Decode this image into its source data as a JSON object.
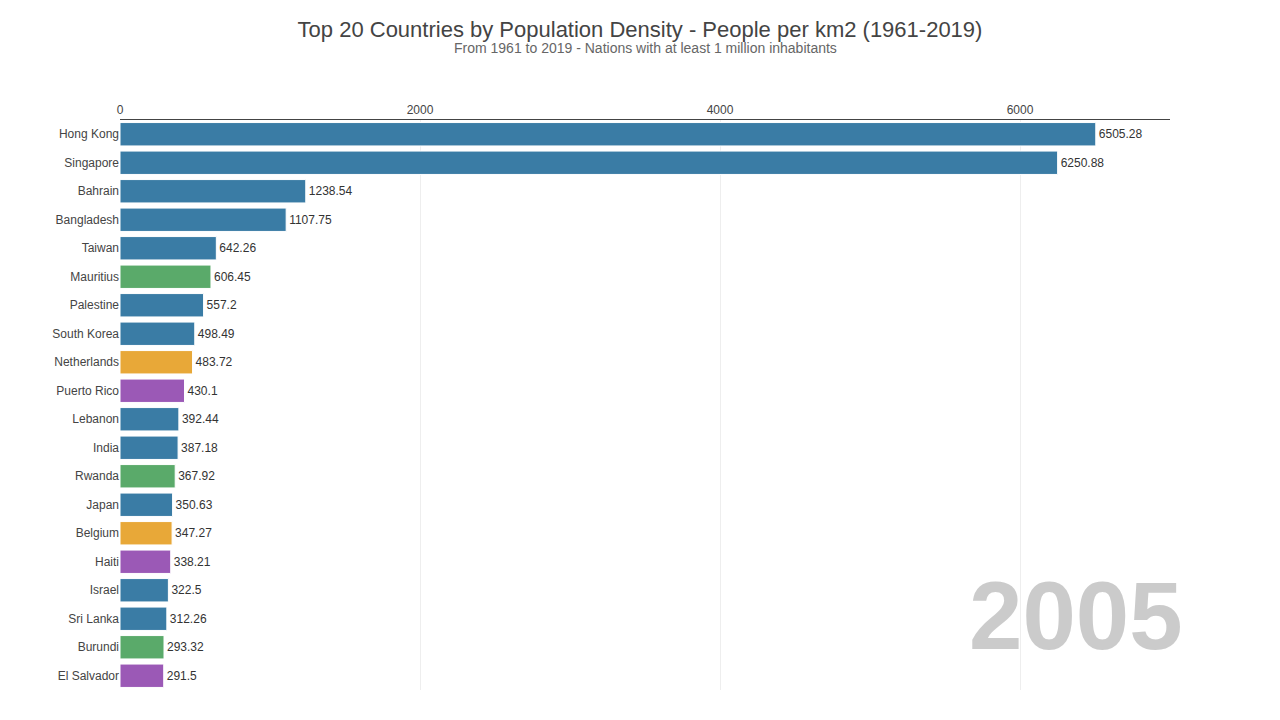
{
  "chart_data": {
    "type": "bar",
    "orientation": "horizontal",
    "title": "Top 20 Countries by Population Density - People per km2 (1961-2019)",
    "subtitle": "From 1961 to 2019 - Nations with at least 1 million inhabitants",
    "annotation": "2005",
    "categories": [
      "Hong Kong",
      "Singapore",
      "Bahrain",
      "Bangladesh",
      "Taiwan",
      "Mauritius",
      "Palestine",
      "South Korea",
      "Netherlands",
      "Puerto Rico",
      "Lebanon",
      "India",
      "Rwanda",
      "Japan",
      "Belgium",
      "Haiti",
      "Israel",
      "Sri Lanka",
      "Burundi",
      "El Salvador"
    ],
    "values": [
      6505.28,
      6250.88,
      1238.54,
      1107.75,
      642.26,
      606.45,
      557.2,
      498.49,
      483.72,
      430.1,
      392.44,
      387.18,
      367.92,
      350.63,
      347.27,
      338.21,
      322.5,
      312.26,
      293.32,
      291.5
    ],
    "colors": [
      "#3a7ca5",
      "#3a7ca5",
      "#3a7ca5",
      "#3a7ca5",
      "#3a7ca5",
      "#5aaa6a",
      "#3a7ca5",
      "#3a7ca5",
      "#e8a838",
      "#9b59b6",
      "#3a7ca5",
      "#3a7ca5",
      "#5aaa6a",
      "#3a7ca5",
      "#e8a838",
      "#9b59b6",
      "#3a7ca5",
      "#3a7ca5",
      "#5aaa6a",
      "#9b59b6"
    ],
    "xlim": [
      0,
      7000
    ],
    "xticks": [
      0,
      2000,
      4000,
      6000
    ],
    "grid": true,
    "data_labels": true
  }
}
